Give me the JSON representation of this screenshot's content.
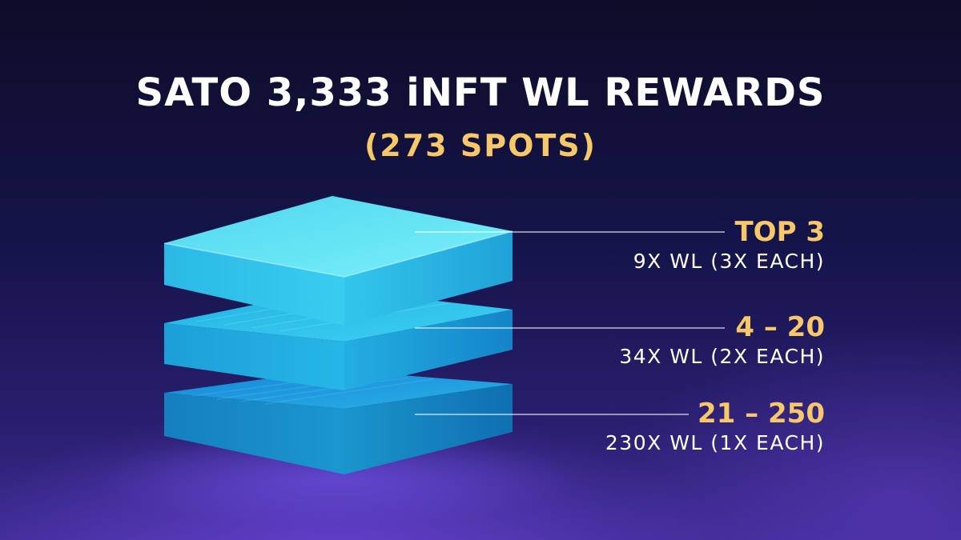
{
  "title": "SATO 3,333 iNFT WL REWARDS",
  "subtitle": "(273 SPOTS)",
  "tiers": [
    {
      "rank": "TOP 3",
      "reward": "9X WL (3X EACH)"
    },
    {
      "rank": "4 – 20",
      "reward": "34X WL (2X EACH)"
    },
    {
      "rank": "21 – 250",
      "reward": "230X WL (1X EACH)"
    }
  ],
  "colors": {
    "accent": "#f7c86a",
    "text": "#ffffff",
    "layer_top": "#5ee6f2",
    "layer_middle": "#2fc6ea",
    "layer_bottom": "#22a6d2"
  }
}
